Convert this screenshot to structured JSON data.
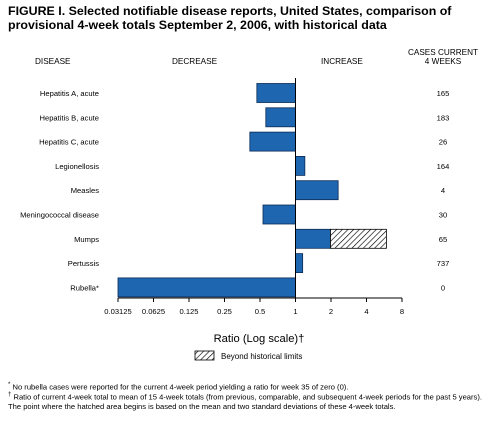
{
  "title": "FIGURE I. Selected notifiable disease reports, United States, comparison of provisional 4-week totals September 2, 2006, with historical data",
  "headers": {
    "disease": "DISEASE",
    "decrease": "DECREASE",
    "increase": "INCREASE",
    "cases_line1": "CASES CURRENT",
    "cases_line2": "4 WEEKS"
  },
  "legend": {
    "label": "Beyond historical limits"
  },
  "footnotes": [
    {
      "symbol": "*",
      "text": "No rubella cases were reported for the current 4-week period yielding a ratio for week 35 of zero (0)."
    },
    {
      "symbol": "†",
      "text": "Ratio of current 4-week total to mean of 15 4-week totals (from previous, comparable, and subsequent 4-week periods for the past 5 years). The point where the hatched area begins is based on the mean and two standard deviations of these 4-week totals."
    }
  ],
  "colors": {
    "bar": "#1f66b1",
    "bar_edge": "#0a2a55",
    "axis": "#000000"
  },
  "chart_data": {
    "type": "bar",
    "orientation": "horizontal",
    "xscale": "log2",
    "xlabel": "Ratio (Log scale)†",
    "xlim": [
      0.03125,
      8
    ],
    "xticks": [
      "0.03125",
      "0.0625",
      "0.125",
      "0.25",
      "0.5",
      "1",
      "2",
      "4",
      "8"
    ],
    "reference": 1,
    "categories": [
      "Hepatitis A, acute",
      "Hepatitis B, acute",
      "Hepatitis C, acute",
      "Legionellosis",
      "Measles",
      "Meningococcal disease",
      "Mumps",
      "Pertussis",
      "Rubella*"
    ],
    "values": [
      0.47,
      0.56,
      0.41,
      1.2,
      2.3,
      0.53,
      1.98,
      1.15,
      0
    ],
    "beyond_limits": [
      null,
      null,
      null,
      null,
      null,
      null,
      5.9,
      null,
      null
    ],
    "cases": [
      "165",
      "183",
      "26",
      "164",
      "4",
      "30",
      "65",
      "737",
      "0"
    ]
  }
}
